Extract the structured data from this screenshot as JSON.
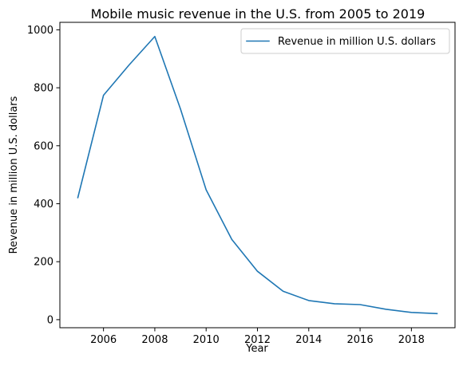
{
  "chart_data": {
    "type": "line",
    "title": "Mobile music revenue in the U.S. from 2005 to 2019",
    "xlabel": "Year",
    "ylabel": "Revenue in million U.S. dollars",
    "x": [
      2005,
      2006,
      2007,
      2008,
      2009,
      2010,
      2011,
      2012,
      2013,
      2014,
      2015,
      2016,
      2017,
      2018,
      2019
    ],
    "series": [
      {
        "name": "Revenue in million U.S. dollars",
        "color": "#1f77b4",
        "values": [
          421,
          774,
          879,
          977,
          727,
          448,
          277,
          167,
          98,
          66,
          55,
          52,
          36,
          25,
          21
        ]
      }
    ],
    "xlim": [
      2004.3,
      2019.7
    ],
    "ylim": [
      -27.8,
      1025.8
    ],
    "xticks": [
      2006,
      2008,
      2010,
      2012,
      2014,
      2016,
      2018
    ],
    "yticks": [
      0,
      200,
      400,
      600,
      800,
      1000
    ],
    "grid": false,
    "legend_position": "top-right"
  }
}
